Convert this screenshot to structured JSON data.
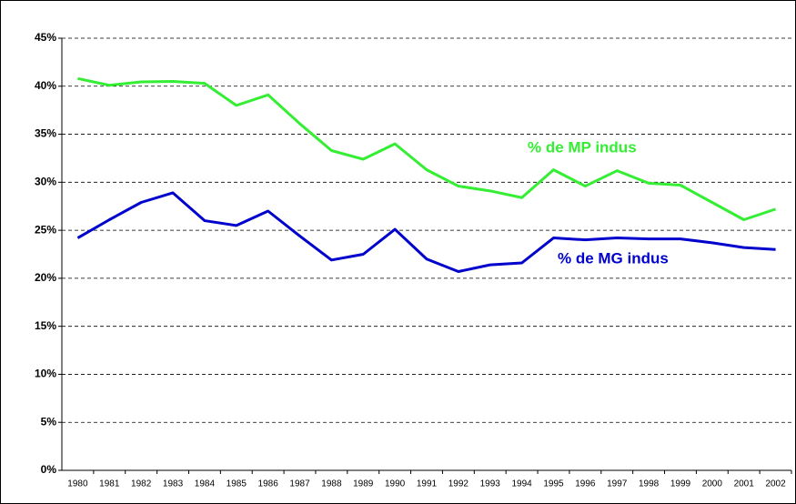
{
  "chart_data": {
    "type": "line",
    "categories": [
      "1980",
      "1981",
      "1982",
      "1983",
      "1984",
      "1985",
      "1986",
      "1987",
      "1988",
      "1989",
      "1990",
      "1991",
      "1992",
      "1993",
      "1994",
      "1995",
      "1996",
      "1997",
      "1998",
      "1999",
      "2000",
      "2001",
      "2002"
    ],
    "series": [
      {
        "name": "% de MP indus",
        "color": "#33ee33",
        "values": [
          40.8,
          40.1,
          40.45,
          40.5,
          40.3,
          38.0,
          39.1,
          36.1,
          33.3,
          32.4,
          34.0,
          31.3,
          29.6,
          29.1,
          28.4,
          31.3,
          29.6,
          31.2,
          29.9,
          29.7,
          27.9,
          26.1,
          27.2
        ]
      },
      {
        "name": "% de MG indus",
        "color": "#0000cc",
        "values": [
          24.2,
          26.1,
          27.9,
          28.9,
          26.0,
          25.5,
          27.0,
          24.4,
          21.9,
          22.5,
          25.1,
          22.0,
          20.7,
          21.4,
          21.6,
          24.2,
          24.0,
          24.2,
          24.1,
          24.1,
          23.7,
          23.2,
          23.0
        ]
      }
    ],
    "ylim": [
      0,
      45
    ],
    "yticks": [
      {
        "value": 0,
        "label": "0%"
      },
      {
        "value": 5,
        "label": "5%"
      },
      {
        "value": 10,
        "label": "10%"
      },
      {
        "value": 15,
        "label": "15%"
      },
      {
        "value": 20,
        "label": "20%"
      },
      {
        "value": 25,
        "label": "25%"
      },
      {
        "value": 30,
        "label": "30%"
      },
      {
        "value": 35,
        "label": "35%"
      },
      {
        "value": 40,
        "label": "40%"
      },
      {
        "value": 45,
        "label": "45%"
      }
    ],
    "grid": true
  }
}
